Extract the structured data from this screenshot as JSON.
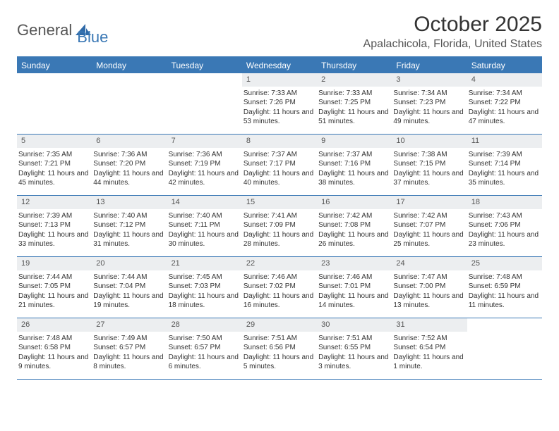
{
  "brand": {
    "part1": "General",
    "part2": "Blue"
  },
  "header": {
    "month_title": "October 2025",
    "location": "Apalachicola, Florida, United States"
  },
  "colors": {
    "accent": "#3a78b5",
    "header_bg": "#3a78b5",
    "header_text": "#ffffff",
    "daynum_bg": "#eceef0",
    "text": "#333333",
    "muted": "#555555"
  },
  "weekdays": [
    "Sunday",
    "Monday",
    "Tuesday",
    "Wednesday",
    "Thursday",
    "Friday",
    "Saturday"
  ],
  "weeks": [
    [
      {
        "blank": true
      },
      {
        "blank": true
      },
      {
        "blank": true
      },
      {
        "day": "1",
        "sunrise": "Sunrise: 7:33 AM",
        "sunset": "Sunset: 7:26 PM",
        "daylight": "Daylight: 11 hours and 53 minutes."
      },
      {
        "day": "2",
        "sunrise": "Sunrise: 7:33 AM",
        "sunset": "Sunset: 7:25 PM",
        "daylight": "Daylight: 11 hours and 51 minutes."
      },
      {
        "day": "3",
        "sunrise": "Sunrise: 7:34 AM",
        "sunset": "Sunset: 7:23 PM",
        "daylight": "Daylight: 11 hours and 49 minutes."
      },
      {
        "day": "4",
        "sunrise": "Sunrise: 7:34 AM",
        "sunset": "Sunset: 7:22 PM",
        "daylight": "Daylight: 11 hours and 47 minutes."
      }
    ],
    [
      {
        "day": "5",
        "sunrise": "Sunrise: 7:35 AM",
        "sunset": "Sunset: 7:21 PM",
        "daylight": "Daylight: 11 hours and 45 minutes."
      },
      {
        "day": "6",
        "sunrise": "Sunrise: 7:36 AM",
        "sunset": "Sunset: 7:20 PM",
        "daylight": "Daylight: 11 hours and 44 minutes."
      },
      {
        "day": "7",
        "sunrise": "Sunrise: 7:36 AM",
        "sunset": "Sunset: 7:19 PM",
        "daylight": "Daylight: 11 hours and 42 minutes."
      },
      {
        "day": "8",
        "sunrise": "Sunrise: 7:37 AM",
        "sunset": "Sunset: 7:17 PM",
        "daylight": "Daylight: 11 hours and 40 minutes."
      },
      {
        "day": "9",
        "sunrise": "Sunrise: 7:37 AM",
        "sunset": "Sunset: 7:16 PM",
        "daylight": "Daylight: 11 hours and 38 minutes."
      },
      {
        "day": "10",
        "sunrise": "Sunrise: 7:38 AM",
        "sunset": "Sunset: 7:15 PM",
        "daylight": "Daylight: 11 hours and 37 minutes."
      },
      {
        "day": "11",
        "sunrise": "Sunrise: 7:39 AM",
        "sunset": "Sunset: 7:14 PM",
        "daylight": "Daylight: 11 hours and 35 minutes."
      }
    ],
    [
      {
        "day": "12",
        "sunrise": "Sunrise: 7:39 AM",
        "sunset": "Sunset: 7:13 PM",
        "daylight": "Daylight: 11 hours and 33 minutes."
      },
      {
        "day": "13",
        "sunrise": "Sunrise: 7:40 AM",
        "sunset": "Sunset: 7:12 PM",
        "daylight": "Daylight: 11 hours and 31 minutes."
      },
      {
        "day": "14",
        "sunrise": "Sunrise: 7:40 AM",
        "sunset": "Sunset: 7:11 PM",
        "daylight": "Daylight: 11 hours and 30 minutes."
      },
      {
        "day": "15",
        "sunrise": "Sunrise: 7:41 AM",
        "sunset": "Sunset: 7:09 PM",
        "daylight": "Daylight: 11 hours and 28 minutes."
      },
      {
        "day": "16",
        "sunrise": "Sunrise: 7:42 AM",
        "sunset": "Sunset: 7:08 PM",
        "daylight": "Daylight: 11 hours and 26 minutes."
      },
      {
        "day": "17",
        "sunrise": "Sunrise: 7:42 AM",
        "sunset": "Sunset: 7:07 PM",
        "daylight": "Daylight: 11 hours and 25 minutes."
      },
      {
        "day": "18",
        "sunrise": "Sunrise: 7:43 AM",
        "sunset": "Sunset: 7:06 PM",
        "daylight": "Daylight: 11 hours and 23 minutes."
      }
    ],
    [
      {
        "day": "19",
        "sunrise": "Sunrise: 7:44 AM",
        "sunset": "Sunset: 7:05 PM",
        "daylight": "Daylight: 11 hours and 21 minutes."
      },
      {
        "day": "20",
        "sunrise": "Sunrise: 7:44 AM",
        "sunset": "Sunset: 7:04 PM",
        "daylight": "Daylight: 11 hours and 19 minutes."
      },
      {
        "day": "21",
        "sunrise": "Sunrise: 7:45 AM",
        "sunset": "Sunset: 7:03 PM",
        "daylight": "Daylight: 11 hours and 18 minutes."
      },
      {
        "day": "22",
        "sunrise": "Sunrise: 7:46 AM",
        "sunset": "Sunset: 7:02 PM",
        "daylight": "Daylight: 11 hours and 16 minutes."
      },
      {
        "day": "23",
        "sunrise": "Sunrise: 7:46 AM",
        "sunset": "Sunset: 7:01 PM",
        "daylight": "Daylight: 11 hours and 14 minutes."
      },
      {
        "day": "24",
        "sunrise": "Sunrise: 7:47 AM",
        "sunset": "Sunset: 7:00 PM",
        "daylight": "Daylight: 11 hours and 13 minutes."
      },
      {
        "day": "25",
        "sunrise": "Sunrise: 7:48 AM",
        "sunset": "Sunset: 6:59 PM",
        "daylight": "Daylight: 11 hours and 11 minutes."
      }
    ],
    [
      {
        "day": "26",
        "sunrise": "Sunrise: 7:48 AM",
        "sunset": "Sunset: 6:58 PM",
        "daylight": "Daylight: 11 hours and 9 minutes."
      },
      {
        "day": "27",
        "sunrise": "Sunrise: 7:49 AM",
        "sunset": "Sunset: 6:57 PM",
        "daylight": "Daylight: 11 hours and 8 minutes."
      },
      {
        "day": "28",
        "sunrise": "Sunrise: 7:50 AM",
        "sunset": "Sunset: 6:57 PM",
        "daylight": "Daylight: 11 hours and 6 minutes."
      },
      {
        "day": "29",
        "sunrise": "Sunrise: 7:51 AM",
        "sunset": "Sunset: 6:56 PM",
        "daylight": "Daylight: 11 hours and 5 minutes."
      },
      {
        "day": "30",
        "sunrise": "Sunrise: 7:51 AM",
        "sunset": "Sunset: 6:55 PM",
        "daylight": "Daylight: 11 hours and 3 minutes."
      },
      {
        "day": "31",
        "sunrise": "Sunrise: 7:52 AM",
        "sunset": "Sunset: 6:54 PM",
        "daylight": "Daylight: 11 hours and 1 minute."
      },
      {
        "blank": true
      }
    ]
  ]
}
